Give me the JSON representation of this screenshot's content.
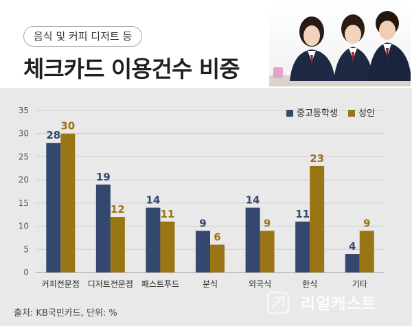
{
  "header": {
    "subtitle": "음식 및 커피 디저트 등",
    "title": "체크카드 이용건수 비중"
  },
  "source": "출처: KB국민카드, 단위: %",
  "watermark": "리얼캐스트",
  "colors": {
    "student": "#34486f",
    "adult": "#9a7515",
    "chart_background": "#e9e9e9"
  },
  "chart_data": {
    "type": "bar",
    "categories": [
      "커피전문점",
      "디저트전문점",
      "패스트푸드",
      "분식",
      "외국식",
      "한식",
      "기타"
    ],
    "series": [
      {
        "name": "중고등학생",
        "values": [
          28,
          19,
          14,
          9,
          14,
          11,
          4
        ]
      },
      {
        "name": "성인",
        "values": [
          30,
          12,
          11,
          6,
          9,
          23,
          9
        ]
      }
    ],
    "yticks": [
      0,
      5,
      10,
      15,
      20,
      25,
      30,
      35
    ],
    "ylim": [
      0,
      35
    ],
    "xlabel": "",
    "ylabel": "",
    "grid": true,
    "legend_position": "top-right"
  }
}
